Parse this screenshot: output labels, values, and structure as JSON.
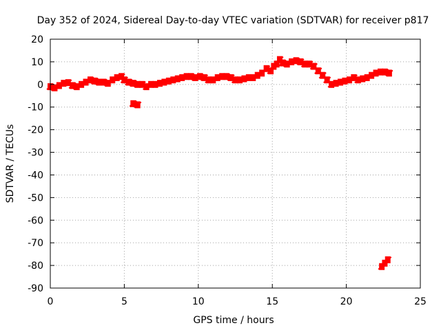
{
  "chart_data": {
    "type": "scatter",
    "title": "Day 352 of 2024, Sidereal Day-to-day VTEC variation (SDTVAR) for receiver p817",
    "xlabel": "GPS time / hours",
    "ylabel": "SDTVAR / TECUs",
    "xlim": [
      0,
      25
    ],
    "ylim": [
      -90,
      20
    ],
    "xticks": [
      0,
      5,
      10,
      15,
      20,
      25
    ],
    "yticks": [
      20,
      10,
      0,
      -10,
      -20,
      -30,
      -40,
      -50,
      -60,
      -70,
      -80,
      -90
    ],
    "grid": true,
    "series_color": "#ff0000",
    "series": [
      {
        "name": "SDTVAR",
        "points": [
          [
            0.0,
            -1.0
          ],
          [
            0.3,
            -1.5
          ],
          [
            0.6,
            -0.5
          ],
          [
            0.9,
            0.5
          ],
          [
            1.2,
            0.8
          ],
          [
            1.5,
            -0.5
          ],
          [
            1.8,
            -1.0
          ],
          [
            2.1,
            0.0
          ],
          [
            2.4,
            1.0
          ],
          [
            2.7,
            2.0
          ],
          [
            3.0,
            1.5
          ],
          [
            3.3,
            1.0
          ],
          [
            3.6,
            1.0
          ],
          [
            3.9,
            0.5
          ],
          [
            4.2,
            2.0
          ],
          [
            4.5,
            3.0
          ],
          [
            4.8,
            3.5
          ],
          [
            5.0,
            2.0
          ],
          [
            5.3,
            1.0
          ],
          [
            5.6,
            0.5
          ],
          [
            5.9,
            0.0
          ],
          [
            6.2,
            0.0
          ],
          [
            6.5,
            -1.0
          ],
          [
            6.8,
            0.0
          ],
          [
            7.1,
            0.0
          ],
          [
            7.4,
            0.5
          ],
          [
            7.7,
            1.0
          ],
          [
            8.0,
            1.5
          ],
          [
            8.3,
            2.0
          ],
          [
            8.6,
            2.5
          ],
          [
            8.9,
            3.0
          ],
          [
            9.2,
            3.5
          ],
          [
            9.5,
            3.5
          ],
          [
            9.8,
            3.0
          ],
          [
            10.1,
            3.5
          ],
          [
            10.4,
            3.0
          ],
          [
            10.7,
            2.0
          ],
          [
            11.0,
            2.0
          ],
          [
            11.3,
            3.0
          ],
          [
            11.6,
            3.5
          ],
          [
            11.9,
            3.5
          ],
          [
            12.2,
            3.0
          ],
          [
            12.5,
            2.0
          ],
          [
            12.8,
            2.0
          ],
          [
            13.1,
            2.5
          ],
          [
            13.4,
            3.0
          ],
          [
            13.7,
            3.0
          ],
          [
            14.0,
            4.0
          ],
          [
            14.3,
            5.0
          ],
          [
            14.6,
            7.0
          ],
          [
            14.9,
            6.0
          ],
          [
            15.1,
            8.0
          ],
          [
            15.3,
            9.0
          ],
          [
            15.5,
            11.0
          ],
          [
            15.7,
            9.5
          ],
          [
            16.0,
            9.0
          ],
          [
            16.3,
            10.0
          ],
          [
            16.6,
            10.5
          ],
          [
            16.9,
            10.0
          ],
          [
            17.2,
            9.0
          ],
          [
            17.5,
            9.0
          ],
          [
            17.8,
            8.0
          ],
          [
            18.1,
            6.0
          ],
          [
            18.4,
            4.0
          ],
          [
            18.7,
            2.0
          ],
          [
            19.0,
            0.0
          ],
          [
            19.3,
            0.5
          ],
          [
            19.6,
            1.0
          ],
          [
            19.9,
            1.5
          ],
          [
            20.2,
            2.0
          ],
          [
            20.5,
            3.0
          ],
          [
            20.8,
            2.0
          ],
          [
            21.1,
            2.5
          ],
          [
            21.4,
            3.0
          ],
          [
            21.7,
            4.0
          ],
          [
            22.0,
            5.0
          ],
          [
            22.3,
            5.5
          ],
          [
            22.6,
            5.5
          ],
          [
            22.9,
            5.0
          ],
          [
            5.6,
            -8.5
          ],
          [
            5.9,
            -9.0
          ],
          [
            22.4,
            -80.5
          ],
          [
            22.6,
            -79.0
          ],
          [
            22.8,
            -77.5
          ]
        ]
      }
    ]
  }
}
